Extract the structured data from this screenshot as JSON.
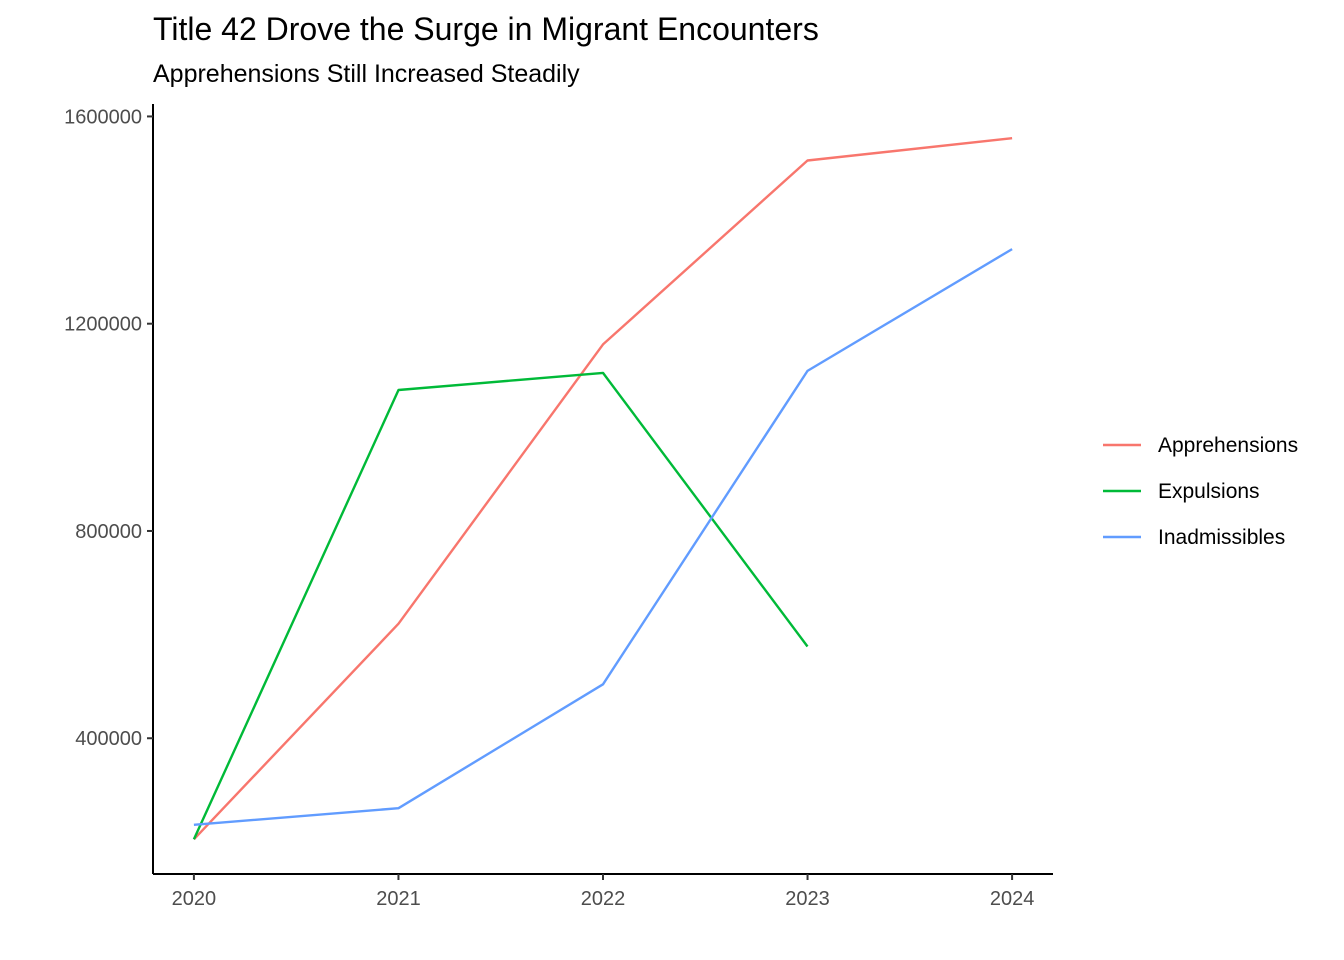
{
  "chart_data": {
    "type": "line",
    "title": "Title 42 Drove the Surge in Migrant Encounters",
    "subtitle": "Apprehensions Still Increased Steadily",
    "xlabel": "",
    "ylabel": "",
    "x": [
      2020,
      2021,
      2022,
      2023,
      2024
    ],
    "x_tick_labels": [
      "2020",
      "2021",
      "2022",
      "2023",
      "2024"
    ],
    "y_ticks": [
      400000,
      800000,
      1200000,
      1600000
    ],
    "y_tick_labels": [
      "400000",
      "800000",
      "1200000",
      "1600000"
    ],
    "xlim": [
      2019.8,
      2024.2
    ],
    "ylim": [
      138000,
      1624000
    ],
    "grid": false,
    "legend_position": "right",
    "series": [
      {
        "name": "Apprehensions",
        "color": "#F8766D",
        "values": [
          205000,
          621000,
          1160000,
          1515000,
          1558000
        ]
      },
      {
        "name": "Expulsions",
        "color": "#00BA38",
        "values": [
          205000,
          1072000,
          1105000,
          577000,
          null
        ]
      },
      {
        "name": "Inadmissibles",
        "color": "#619CFF",
        "values": [
          233000,
          265000,
          504000,
          1109000,
          1344000
        ]
      }
    ]
  }
}
